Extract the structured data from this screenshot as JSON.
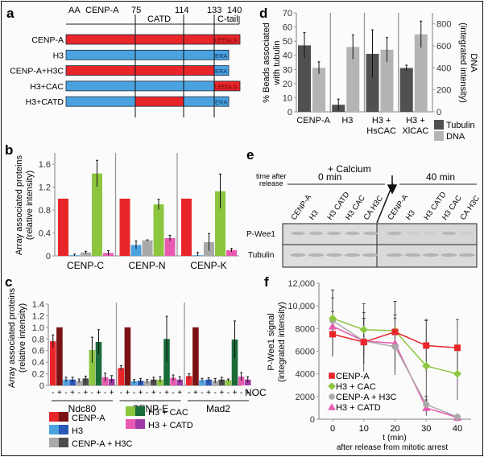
{
  "panels": {
    "a": {
      "letter": "a",
      "header": {
        "aa": "AA",
        "protein": "CENP-A",
        "catd": "CATD",
        "ctail": "C-tail"
      },
      "positions": [
        75,
        114,
        133,
        140
      ],
      "constructs": [
        {
          "name": "CENP-A",
          "segments": [
            "red",
            "red",
            "red"
          ],
          "tail": "LEEGLG",
          "tail_color": "red"
        },
        {
          "name": "H3",
          "segments": [
            "blue",
            "blue",
            "blue"
          ],
          "tail": "ERA",
          "tail_color": "blue"
        },
        {
          "name": "CENP-A+H3C",
          "segments": [
            "red",
            "red",
            "red"
          ],
          "tail": "ERA",
          "tail_color": "blue"
        },
        {
          "name": "H3+CAC",
          "segments": [
            "blue",
            "blue",
            "blue"
          ],
          "tail": "LEEGLG",
          "tail_color": "red"
        },
        {
          "name": "H3+CATD",
          "segments": [
            "blue",
            "red",
            "blue"
          ],
          "tail": "ERA",
          "tail_color": "blue"
        }
      ]
    },
    "b": {
      "letter": "b"
    },
    "c": {
      "letter": "c",
      "noc_label": "NOC",
      "legend": [
        {
          "label": "CENP-A",
          "colors": [
            "#e8262a",
            "#7a1214"
          ]
        },
        {
          "label": "H3",
          "colors": [
            "#4aa3df",
            "#2b57b8"
          ]
        },
        {
          "label": "CENP-A + H3C",
          "colors": [
            "#a9a9a9",
            "#4d4d4d"
          ]
        },
        {
          "label": "H3 + CAC",
          "colors": [
            "#8cc63f",
            "#1a6b3a"
          ]
        },
        {
          "label": "H3 + CATD",
          "colors": [
            "#e85ab0",
            "#a03aa6"
          ]
        }
      ]
    },
    "d": {
      "letter": "d"
    },
    "e": {
      "letter": "e",
      "calcium": "+ Calcium",
      "time_label": [
        "time after",
        "release"
      ],
      "t0": "0 min",
      "t40": "40 min",
      "lanes": [
        "CENP-A",
        "H3",
        "H3 CATD",
        "H3 CAC",
        "CA H3C"
      ],
      "rows": [
        "P-Wee1",
        "Tubulin"
      ]
    },
    "f": {
      "letter": "f"
    }
  },
  "colors": {
    "red": "#e8262a",
    "blue": "#4aa3df",
    "gray": "#a9a9a9",
    "green": "#8cc63f",
    "pink": "#e85ab0",
    "dark": "#505050",
    "light": "#b4b4b4"
  },
  "chart_data": [
    {
      "id": "b",
      "type": "bar",
      "ylabel": "Array associated proteins (relative intensity)",
      "ylim": [
        0,
        1.8
      ],
      "yticks": [
        "0",
        "0.4",
        "0.8",
        "1.2",
        "1.6"
      ],
      "categories": [
        "CENP-C",
        "CENP-N",
        "CENP-K"
      ],
      "series": [
        {
          "name": "CENP-A",
          "color": "#e8262a",
          "values": [
            1.0,
            1.0,
            1.0
          ],
          "err": [
            0,
            0,
            0
          ]
        },
        {
          "name": "H3",
          "color": "#4aa3df",
          "values": [
            0.01,
            0.19,
            0.01
          ],
          "err": [
            0.02,
            0.07,
            0.05
          ]
        },
        {
          "name": "CENP-A + H3C",
          "color": "#a9a9a9",
          "values": [
            0.06,
            0.27,
            0.24
          ],
          "err": [
            0.02,
            0.01,
            0.15
          ]
        },
        {
          "name": "H3 + CAC",
          "color": "#8cc63f",
          "values": [
            1.44,
            0.9,
            1.13
          ],
          "err": [
            0.23,
            0.09,
            0.3
          ]
        },
        {
          "name": "H3 + CATD",
          "color": "#e85ab0",
          "values": [
            0.05,
            0.31,
            0.1
          ],
          "err": [
            0.04,
            0.05,
            0.03
          ]
        }
      ]
    },
    {
      "id": "c",
      "type": "bar",
      "ylabel": "Array associated proteins (relative intensity)",
      "ylim": [
        0,
        1.4
      ],
      "yticks": [
        "0",
        "0.2",
        "0.4",
        "0.6",
        "0.8",
        "1.0",
        "1.2",
        "1.4"
      ],
      "categories": [
        "Ndc80",
        "CENP-E",
        "Mad2"
      ],
      "x_sublabels": [
        "-",
        "+"
      ],
      "series": [
        {
          "name": "CENP-A -NOC",
          "color": "#e8262a",
          "values": [
            0.76,
            0.3,
            0.16
          ],
          "err": [
            0.11,
            0.04,
            0.04
          ]
        },
        {
          "name": "CENP-A +NOC",
          "color": "#7a1214",
          "values": [
            1.0,
            1.0,
            1.0
          ],
          "err": [
            0,
            0,
            0
          ]
        },
        {
          "name": "H3 -NOC",
          "color": "#4aa3df",
          "values": [
            0.1,
            0.07,
            0.09
          ],
          "err": [
            0.04,
            0.03,
            0.03
          ]
        },
        {
          "name": "H3 +NOC",
          "color": "#2b57b8",
          "values": [
            0.1,
            0.08,
            0.1
          ],
          "err": [
            0.04,
            0.04,
            0.03
          ]
        },
        {
          "name": "CENP-A + H3C -NOC",
          "color": "#a9a9a9",
          "values": [
            0.08,
            0.07,
            0.08
          ],
          "err": [
            0.03,
            0.03,
            0.04
          ]
        },
        {
          "name": "CENP-A + H3C +NOC",
          "color": "#4d4d4d",
          "values": [
            0.12,
            0.1,
            0.1
          ],
          "err": [
            0.04,
            0.04,
            0.04
          ]
        },
        {
          "name": "H3 + CAC -NOC",
          "color": "#8cc63f",
          "values": [
            0.61,
            0.1,
            0.09
          ],
          "err": [
            0.22,
            0.05,
            0.02
          ]
        },
        {
          "name": "H3 + CAC +NOC",
          "color": "#1a6b3a",
          "values": [
            0.75,
            0.8,
            0.79
          ],
          "err": [
            0.21,
            0.39,
            0.32
          ]
        },
        {
          "name": "H3 + CATD -NOC",
          "color": "#e85ab0",
          "values": [
            0.14,
            0.13,
            0.15
          ],
          "err": [
            0.07,
            0.05,
            0.07
          ]
        },
        {
          "name": "H3 + CATD +NOC",
          "color": "#a03aa6",
          "values": [
            0.11,
            0.1,
            0.1
          ],
          "err": [
            0.06,
            0.05,
            0.05
          ]
        }
      ]
    },
    {
      "id": "d",
      "type": "bar",
      "ylabel": "% Beads associated with tubulin",
      "y2label": "DNA (integrated intensity)",
      "ylim": [
        0,
        70
      ],
      "y2lim": [
        0,
        900
      ],
      "yticks": [
        "0",
        "10",
        "20",
        "30",
        "40",
        "50",
        "60",
        "70"
      ],
      "y2ticks": [
        "0",
        "200",
        "400",
        "600",
        "800"
      ],
      "categories": [
        "CENP-A",
        "H3",
        "H3 + HsCAC",
        "H3 + XlCAC"
      ],
      "series": [
        {
          "name": "Tubulin",
          "axis": "left",
          "color": "#505050",
          "values": [
            47,
            5,
            41,
            31
          ],
          "err": [
            9,
            4,
            17,
            2
          ]
        },
        {
          "name": "DNA",
          "axis": "right",
          "color": "#b4b4b4",
          "values": [
            400,
            590,
            565,
            705
          ],
          "err": [
            55,
            110,
            110,
            120
          ]
        }
      ]
    },
    {
      "id": "f",
      "type": "line",
      "ylabel": "P-Wee1 signal (integrated intensity)",
      "xlabel": "t (min)",
      "xlabel2": "after release from mitotic arrest",
      "ylim": [
        0,
        12000
      ],
      "yticks": [
        "0",
        "2000",
        "4000",
        "6000",
        "8000",
        "10,000",
        "12,000"
      ],
      "x": [
        0,
        10,
        20,
        30,
        40
      ],
      "xticks": [
        "0",
        "10",
        "20",
        "30",
        "40"
      ],
      "legend_position": "bottom-left",
      "series": [
        {
          "name": "CENP-A",
          "marker": "square",
          "color": "#e8262a",
          "values": [
            7500,
            6800,
            7700,
            6500,
            6300
          ],
          "err": [
            2000,
            2600,
            2700,
            2300,
            2500
          ]
        },
        {
          "name": "H3 + CAC",
          "marker": "diamond",
          "color": "#8cc63f",
          "values": [
            8900,
            7900,
            7800,
            4700,
            4000
          ],
          "err": [
            2500,
            2300,
            2600,
            4000,
            2300
          ]
        },
        {
          "name": "CENP-A + H3C",
          "marker": "circle",
          "color": "#a9a9a9",
          "values": [
            8700,
            6900,
            6400,
            1300,
            200
          ],
          "err": [
            2700,
            2000,
            2500,
            700,
            200
          ]
        },
        {
          "name": "H3 + CATD",
          "marker": "triangle",
          "color": "#e85ab0",
          "values": [
            8200,
            6900,
            6700,
            1000,
            150
          ],
          "err": [
            2500,
            2000,
            2500,
            700,
            200
          ]
        }
      ]
    }
  ]
}
